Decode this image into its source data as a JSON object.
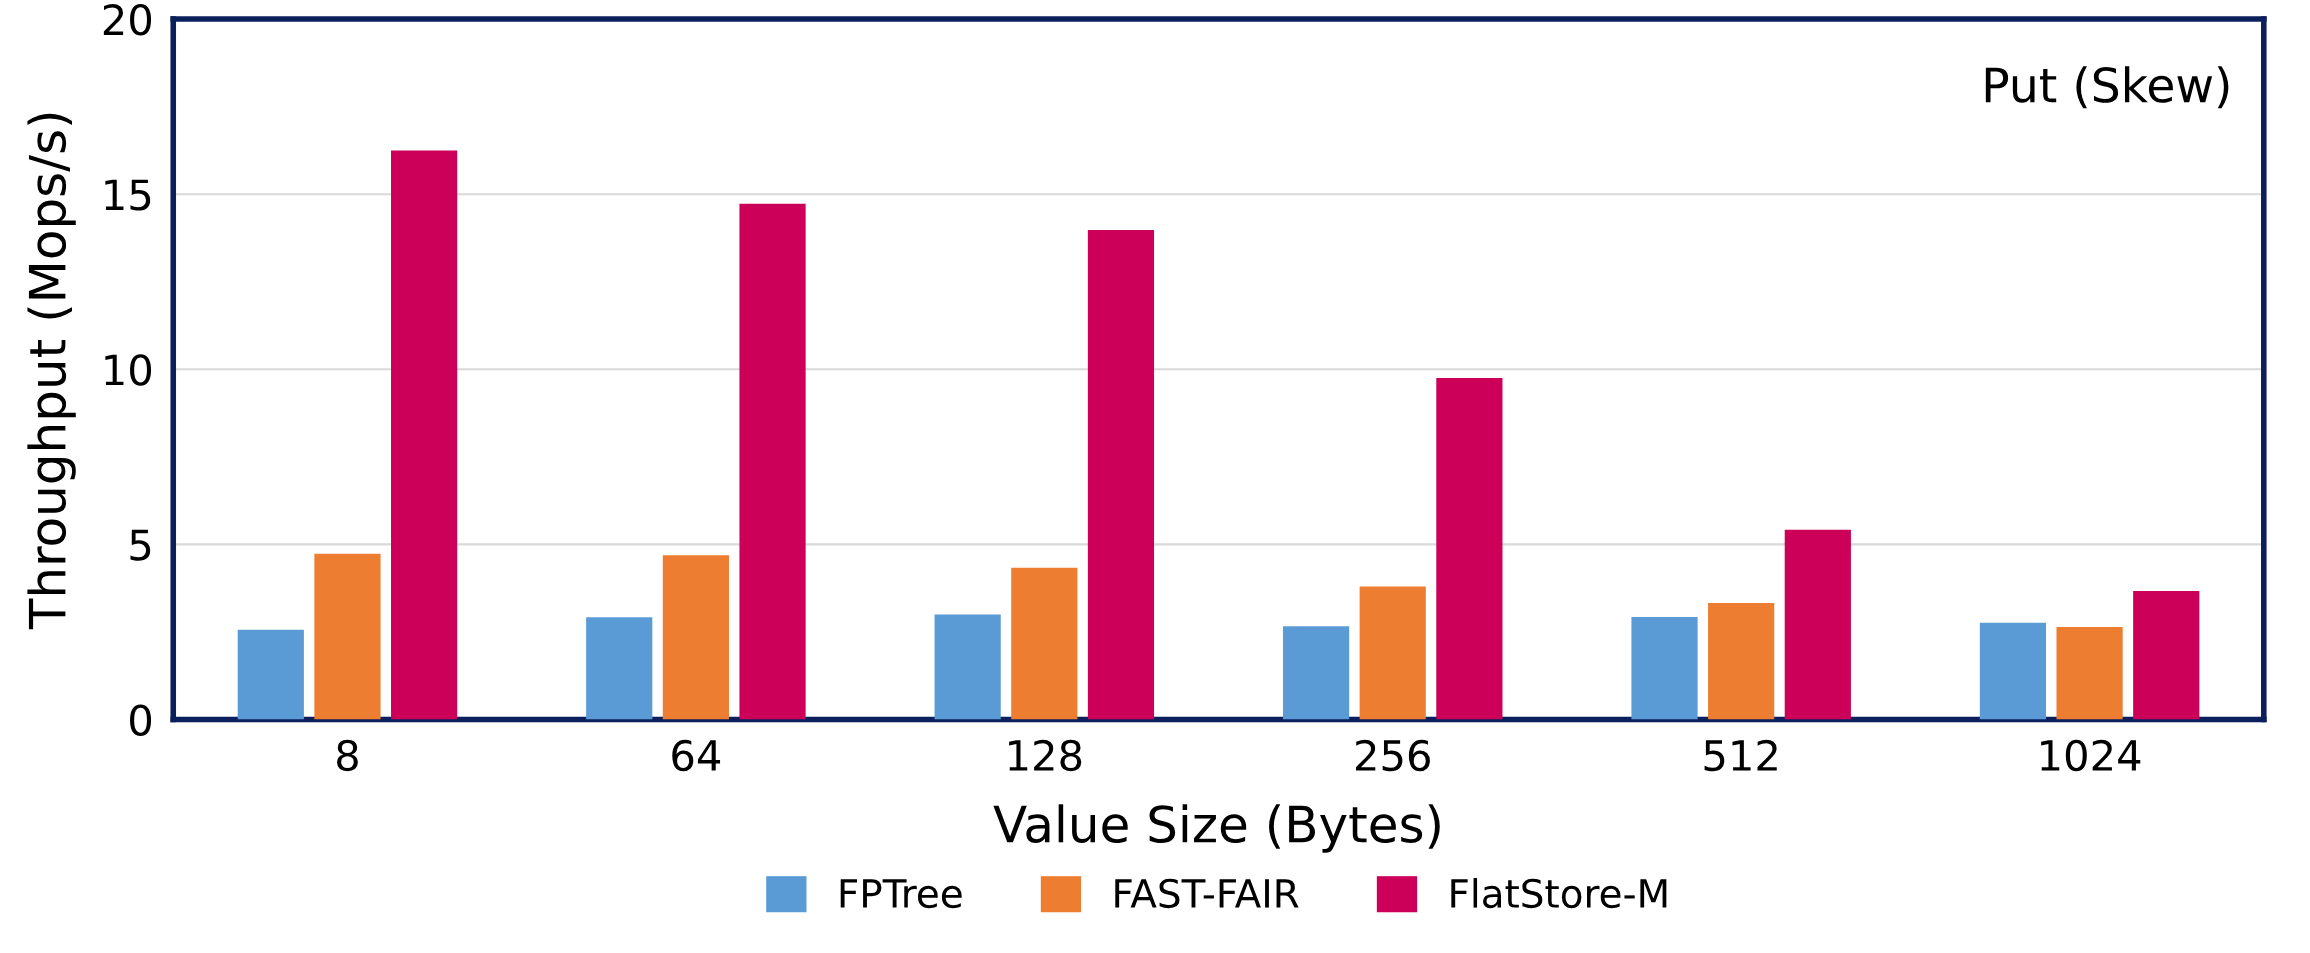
{
  "chart_data": {
    "type": "bar",
    "xlabel": "Value Size (Bytes)",
    "ylabel": "Throughput (Mops/s)",
    "categories": [
      "8",
      "64",
      "128",
      "256",
      "512",
      "1024"
    ],
    "series": [
      {
        "name": "FPTree",
        "color": "#5b9bd5",
        "values": [
          2.56,
          2.92,
          3.0,
          2.66,
          2.93,
          2.76
        ]
      },
      {
        "name": "FAST-FAIR",
        "color": "#ed7d31",
        "values": [
          4.73,
          4.69,
          4.33,
          3.8,
          3.33,
          2.64
        ]
      },
      {
        "name": "FlatStore-M",
        "color": "#cc0058",
        "values": [
          16.25,
          14.73,
          13.98,
          9.75,
          5.42,
          3.67
        ]
      }
    ],
    "ylim": [
      0,
      20
    ],
    "yticks": [
      0,
      5,
      10,
      15,
      20
    ],
    "grid": "y",
    "legend": "bottom",
    "annotations": [
      "Put (Skew)"
    ]
  }
}
